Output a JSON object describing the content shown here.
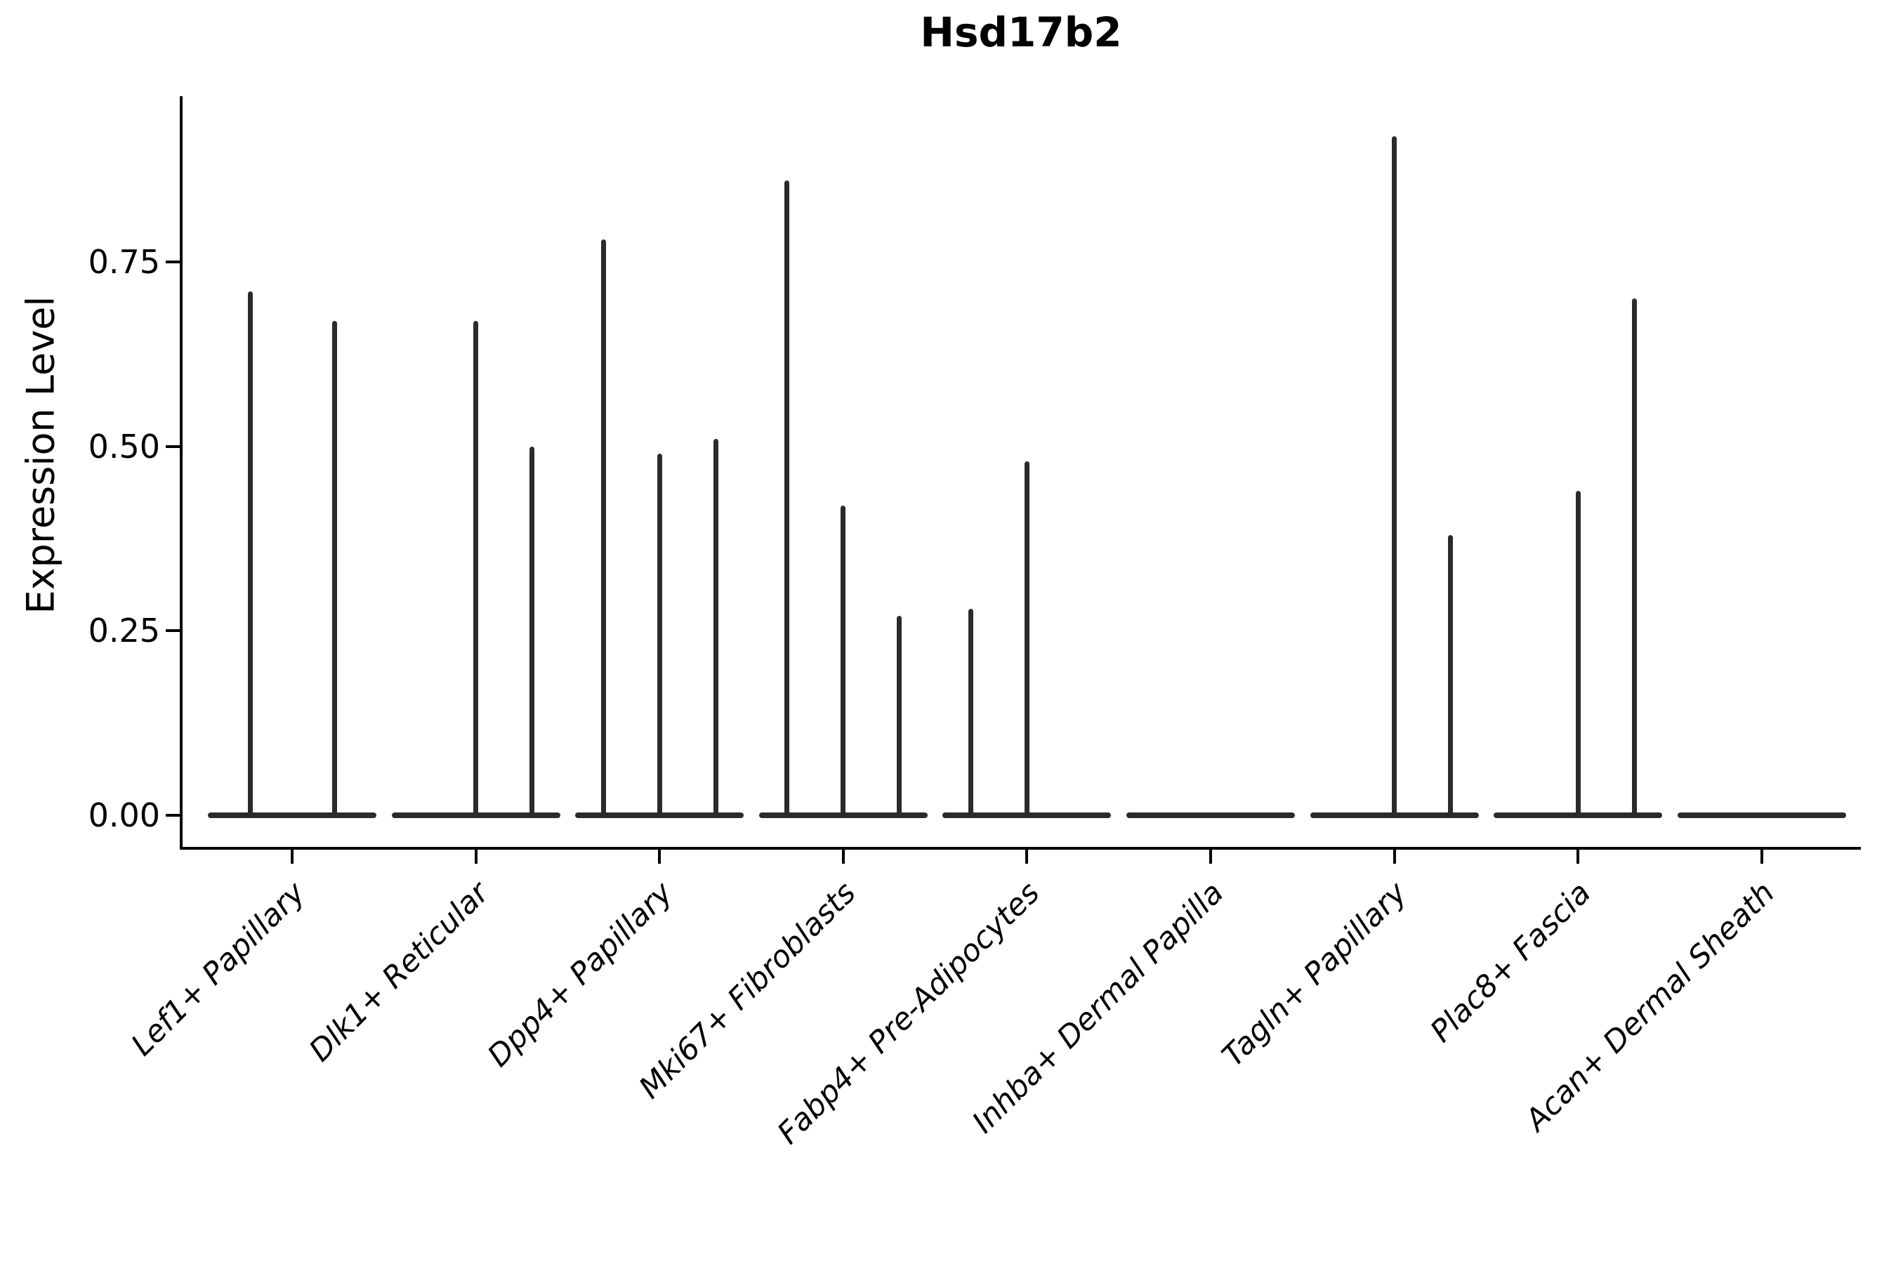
{
  "title": "Hsd17b2",
  "y_axis": {
    "label": "Expression Level",
    "tick_labels": [
      "0.00",
      "0.25",
      "0.50",
      "0.75"
    ]
  },
  "chart_data": {
    "type": "violin",
    "title": "Hsd17b2",
    "xlabel": "",
    "ylabel": "Expression Level",
    "ylim": [
      0,
      0.97
    ],
    "yticks": [
      0,
      0.25,
      0.5,
      0.75
    ],
    "grid": false,
    "legend_position": "none",
    "ink_color": "#2b2b2b",
    "axis_color": "#000000",
    "description": "Violin plot; each category holds dodged sub-violins that are flat at 0 with a thin spike to the max expression value.",
    "categories": [
      "Lef1+ Papillary",
      "Dlk1+ Reticular",
      "Dpp4+ Papillary",
      "Mki67+ Fibroblasts",
      "Fabp4+ Pre-Adipocytes",
      "Inhba+ Dermal Papilla",
      "Tagln+ Papillary",
      "Plac8+ Fascia",
      "Acan+ Dermal Sheath"
    ],
    "violins": [
      {
        "category": "Lef1+ Papillary",
        "n_groups": 2,
        "spikes": [
          {
            "group": 0,
            "value": 0.71
          },
          {
            "group": 1,
            "value": 0.67
          }
        ]
      },
      {
        "category": "Dlk1+ Reticular",
        "n_groups": 3,
        "spikes": [
          {
            "group": 1,
            "value": 0.67
          },
          {
            "group": 2,
            "value": 0.5
          }
        ]
      },
      {
        "category": "Dpp4+ Papillary",
        "n_groups": 3,
        "spikes": [
          {
            "group": 0,
            "value": 0.78
          },
          {
            "group": 1,
            "value": 0.49
          },
          {
            "group": 2,
            "value": 0.51
          }
        ]
      },
      {
        "category": "Mki67+ Fibroblasts",
        "n_groups": 3,
        "spikes": [
          {
            "group": 0,
            "value": 0.86
          },
          {
            "group": 1,
            "value": 0.42
          },
          {
            "group": 2,
            "value": 0.27
          }
        ]
      },
      {
        "category": "Fabp4+ Pre-Adipocytes",
        "n_groups": 3,
        "spikes": [
          {
            "group": 0,
            "value": 0.28
          },
          {
            "group": 1,
            "value": 0.48
          }
        ]
      },
      {
        "category": "Inhba+ Dermal Papilla",
        "n_groups": 3,
        "spikes": []
      },
      {
        "category": "Tagln+ Papillary",
        "n_groups": 3,
        "spikes": [
          {
            "group": 1,
            "value": 0.92
          },
          {
            "group": 2,
            "value": 0.38
          }
        ]
      },
      {
        "category": "Plac8+ Fascia",
        "n_groups": 3,
        "spikes": [
          {
            "group": 1,
            "value": 0.44
          },
          {
            "group": 2,
            "value": 0.7
          }
        ]
      },
      {
        "category": "Acan+ Dermal Sheath",
        "n_groups": 3,
        "spikes": []
      }
    ]
  }
}
